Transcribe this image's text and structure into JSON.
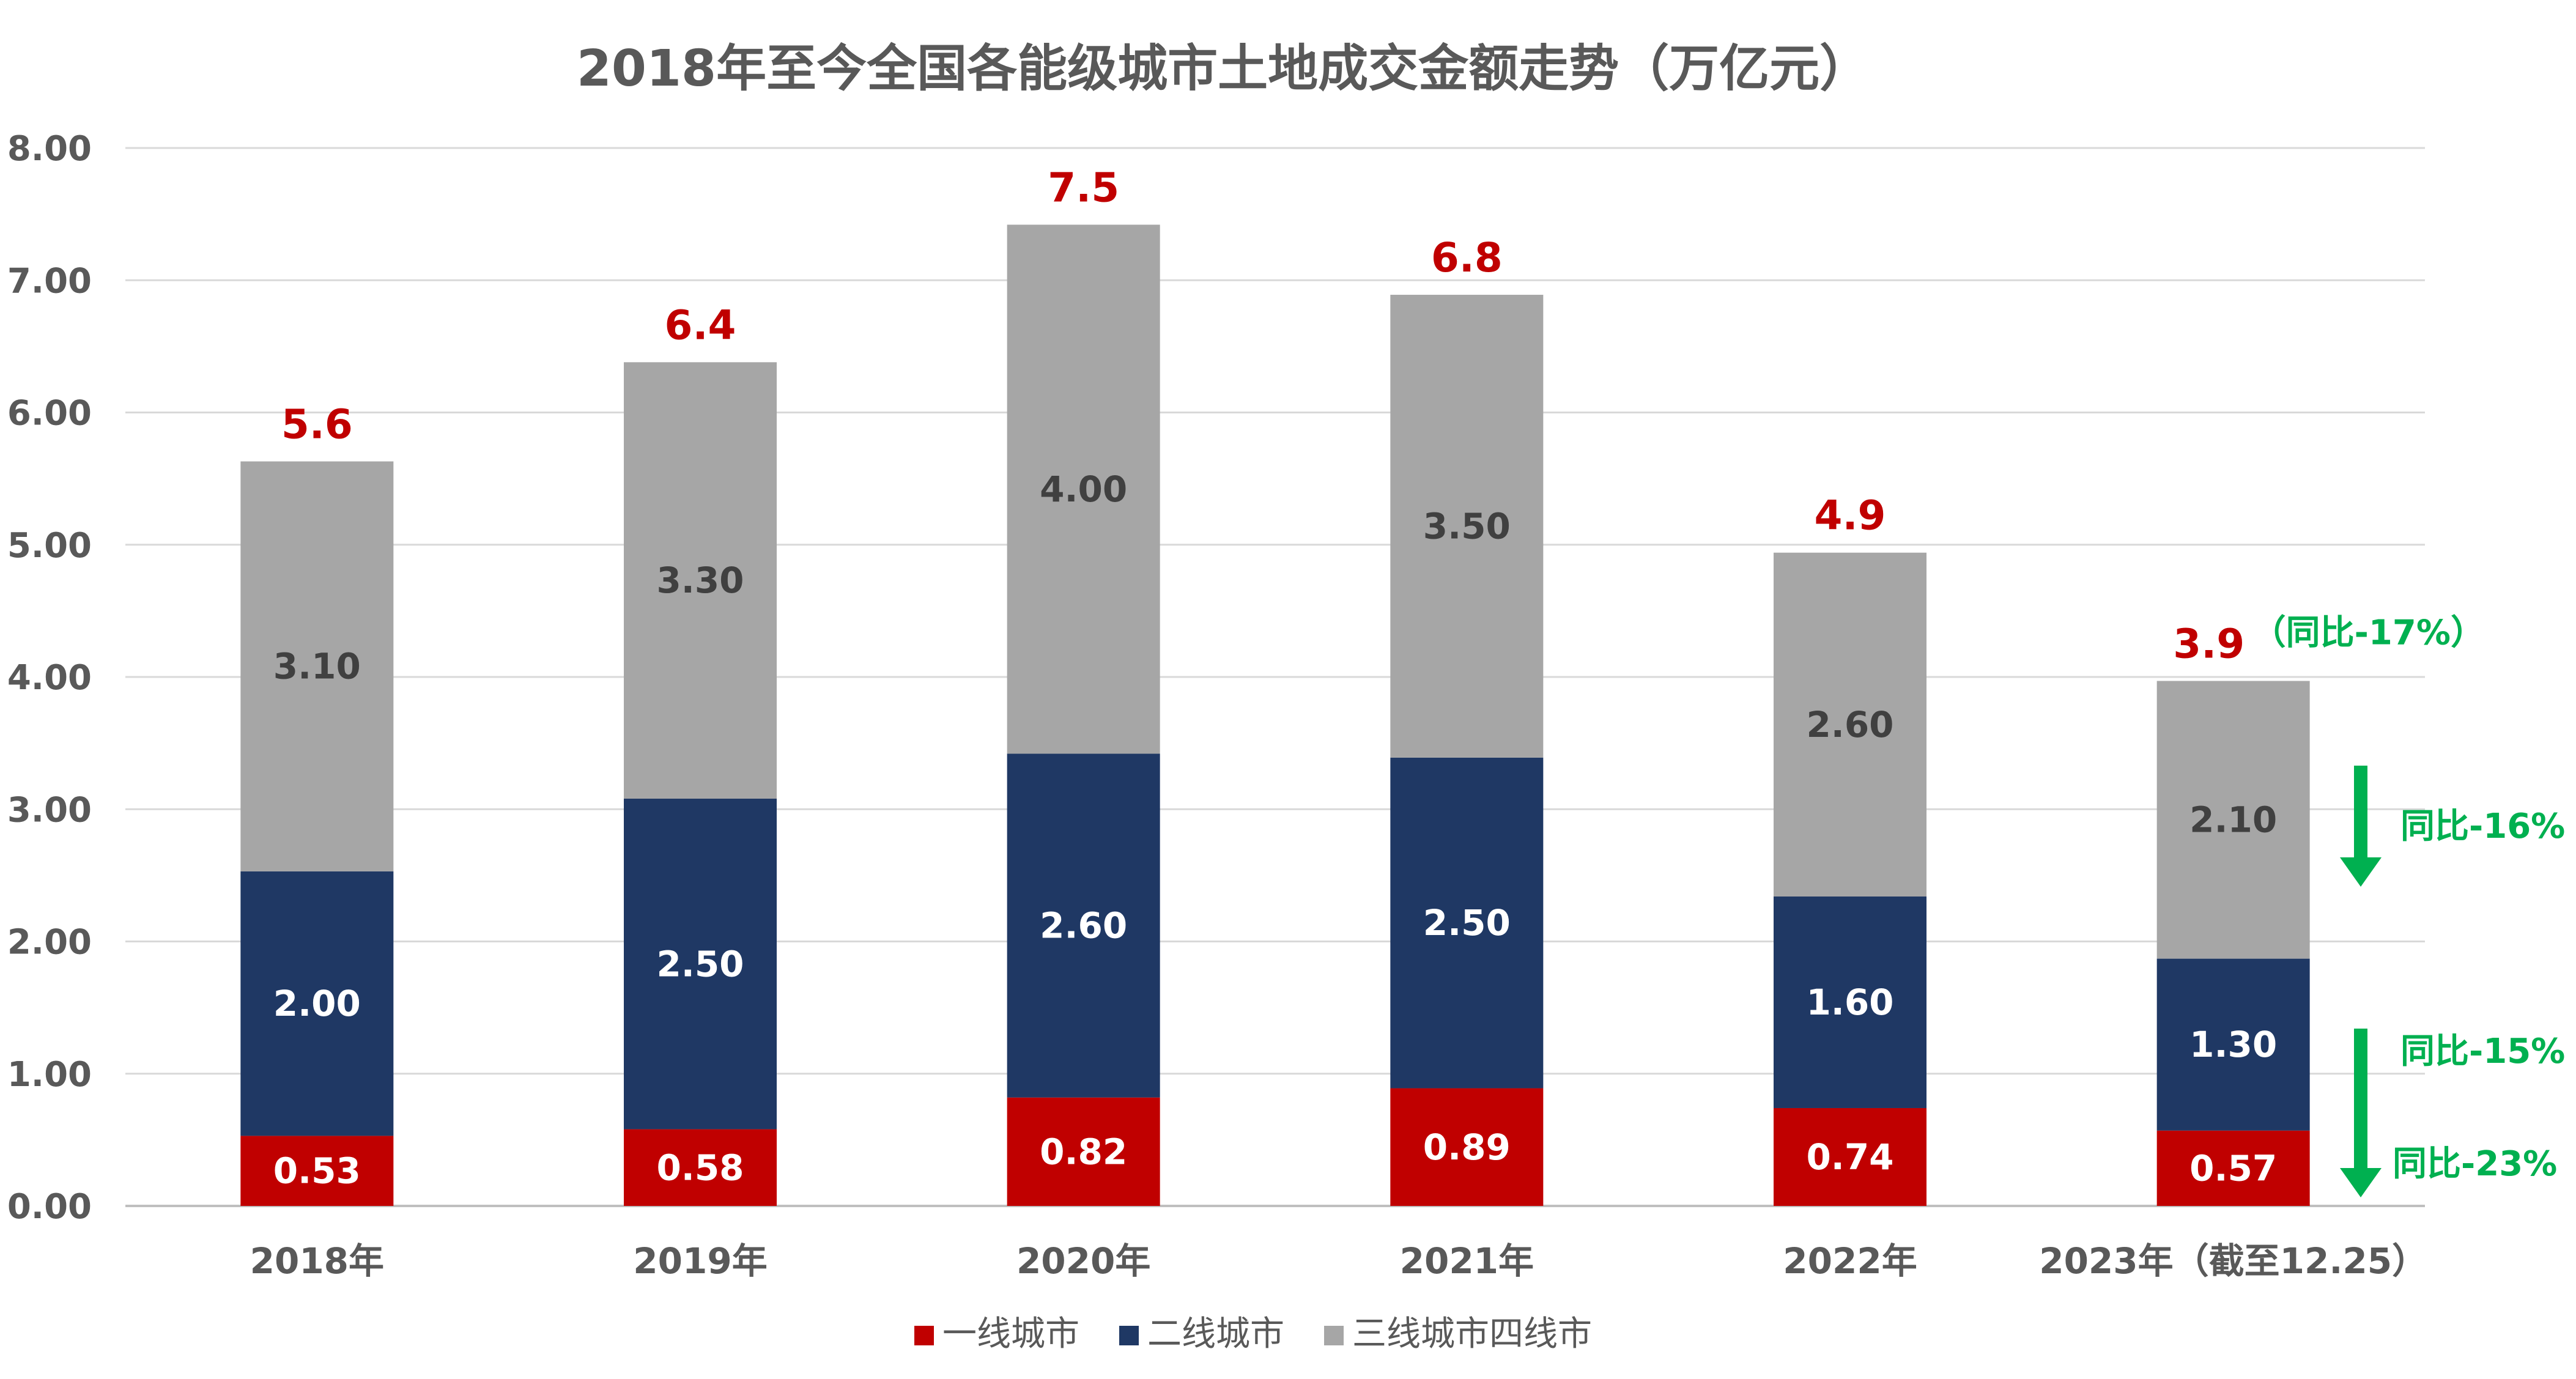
{
  "chart_data": {
    "type": "bar",
    "stacked": true,
    "title": "2018年至今全国各能级城市土地成交金额走势（万亿元）",
    "categories": [
      "2018年",
      "2019年",
      "2020年",
      "2021年",
      "2022年",
      "2023年（截至12.25）"
    ],
    "series": [
      {
        "name": "一线城市",
        "color": "#C00000",
        "values": [
          0.53,
          0.58,
          0.82,
          0.89,
          0.74,
          0.57
        ]
      },
      {
        "name": "二线城市",
        "color": "#1F3864",
        "values": [
          2.0,
          2.5,
          2.6,
          2.5,
          1.6,
          1.3
        ]
      },
      {
        "name": "三线城市",
        "color": "#A6A6A6",
        "values": [
          3.1,
          3.3,
          4.0,
          3.5,
          2.6,
          2.1
        ]
      }
    ],
    "segment_labels": [
      [
        "0.53",
        "0.58",
        "0.82",
        "0.89",
        "0.74",
        "0.57"
      ],
      [
        "2.00",
        "2.50",
        "2.60",
        "2.50",
        "1.60",
        "1.30"
      ],
      [
        "3.10",
        "3.30",
        "4.00",
        "3.50",
        "2.60",
        "2.10"
      ]
    ],
    "totals": [
      "5.6",
      "6.4",
      "7.5",
      "6.8",
      "4.9",
      "3.9"
    ],
    "total_color": "#C00000",
    "ylim": [
      0,
      8
    ],
    "yticks": [
      "0.00",
      "1.00",
      "2.00",
      "3.00",
      "4.00",
      "5.00",
      "6.00",
      "7.00",
      "8.00"
    ],
    "grid": true,
    "legend_position": "bottom",
    "legend": [
      "一线城市",
      "二线城市",
      "三线城市四线市"
    ],
    "annotation_color": "#00B050",
    "annotations": {
      "total_yoy": "（同比-17%）",
      "tier3_yoy": "同比-16%",
      "tier2_yoy": "同比-15%",
      "tier1_yoy": "同比-23%"
    }
  }
}
